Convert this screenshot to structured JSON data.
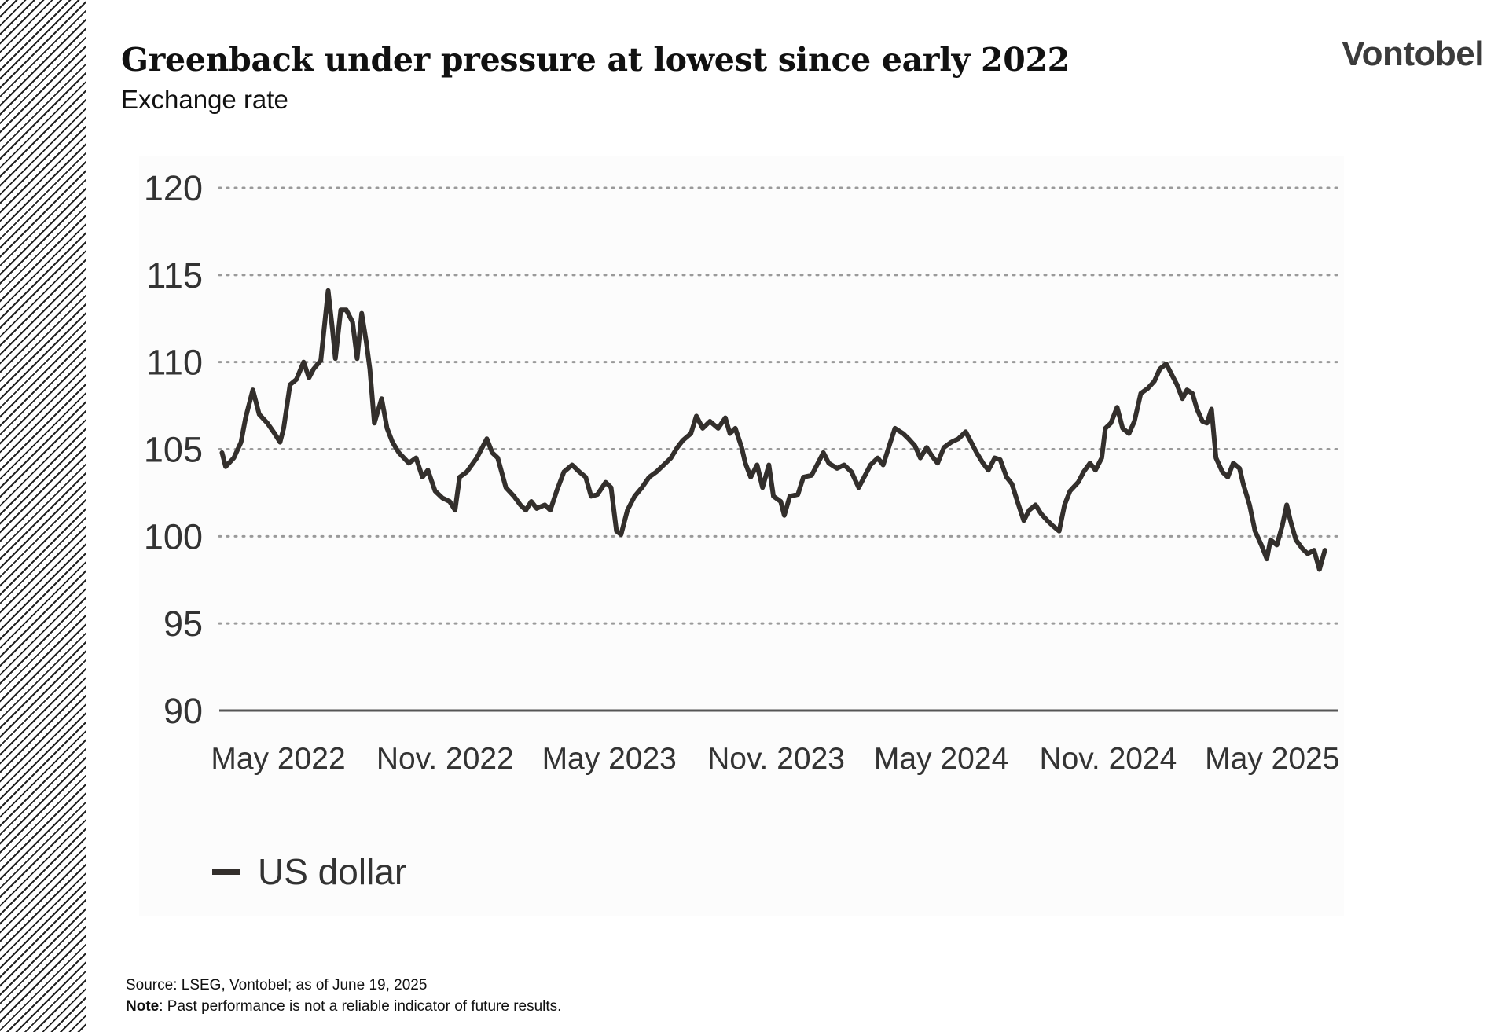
{
  "header": {
    "title": "Greenback under pressure at lowest since early 2022",
    "subtitle": "Exchange rate",
    "logo_text": "Vontobel"
  },
  "footer": {
    "source": "Source: LSEG, Vontobel; as of June 19, 2025",
    "note_label": "Note",
    "note_text": ": Past performance is not a reliable indicator of future results."
  },
  "colors": {
    "line": "#332f2c",
    "grid": "#9a9a9a",
    "axis": "#555555",
    "hatch": "#222222"
  },
  "chart_data": {
    "type": "line",
    "title": "",
    "xlabel": "",
    "ylabel": "",
    "ylim": [
      90,
      120
    ],
    "yticks": [
      90,
      95,
      100,
      105,
      110,
      115,
      120
    ],
    "ytick_labels": [
      "90",
      "95",
      "100",
      "105",
      "110",
      "115",
      "120"
    ],
    "xticks": [
      "2022-05-01",
      "2022-11-01",
      "2023-05-01",
      "2023-11-01",
      "2024-05-01",
      "2024-11-01",
      "2025-05-01"
    ],
    "xtick_labels": [
      "May 2022",
      "Nov. 2022",
      "May 2023",
      "Nov. 2023",
      "May 2024",
      "Nov. 2024",
      "May 2025"
    ],
    "grid": "horizontal dotted",
    "legend": "bottom-left",
    "series": [
      {
        "name": "US dollar",
        "x": [
          "2022-02-28",
          "2022-03-04",
          "2022-03-13",
          "2022-03-21",
          "2022-03-26",
          "2022-04-03",
          "2022-04-10",
          "2022-04-19",
          "2022-04-27",
          "2022-05-03",
          "2022-05-07",
          "2022-05-14",
          "2022-05-21",
          "2022-05-29",
          "2022-06-04",
          "2022-06-09",
          "2022-06-17",
          "2022-06-25",
          "2022-06-30",
          "2022-07-03",
          "2022-07-09",
          "2022-07-15",
          "2022-07-22",
          "2022-07-27",
          "2022-08-01",
          "2022-08-06",
          "2022-08-10",
          "2022-08-15",
          "2022-08-23",
          "2022-08-29",
          "2022-09-04",
          "2022-09-11",
          "2022-09-22",
          "2022-09-30",
          "2022-10-07",
          "2022-10-13",
          "2022-10-21",
          "2022-10-29",
          "2022-11-06",
          "2022-11-12",
          "2022-11-17",
          "2022-11-25",
          "2022-12-06",
          "2022-12-17",
          "2022-12-23",
          "2022-12-29",
          "2023-01-07",
          "2023-01-16",
          "2023-01-23",
          "2023-01-29",
          "2023-02-04",
          "2023-02-10",
          "2023-02-19",
          "2023-02-25",
          "2023-03-04",
          "2023-03-12",
          "2023-03-21",
          "2023-03-29",
          "2023-04-05",
          "2023-04-11",
          "2023-04-18",
          "2023-04-27",
          "2023-05-03",
          "2023-05-09",
          "2023-05-14",
          "2023-05-21",
          "2023-05-29",
          "2023-06-06",
          "2023-06-14",
          "2023-06-22",
          "2023-06-30",
          "2023-07-08",
          "2023-07-15",
          "2023-07-21",
          "2023-07-30",
          "2023-08-05",
          "2023-08-12",
          "2023-08-20",
          "2023-08-29",
          "2023-09-06",
          "2023-09-11",
          "2023-09-17",
          "2023-09-24",
          "2023-09-28",
          "2023-10-04",
          "2023-10-11",
          "2023-10-17",
          "2023-10-24",
          "2023-10-29",
          "2023-11-06",
          "2023-11-10",
          "2023-11-16",
          "2023-11-25",
          "2023-12-01",
          "2023-12-10",
          "2023-12-16",
          "2023-12-23",
          "2023-12-29",
          "2024-01-07",
          "2024-01-15",
          "2024-01-23",
          "2024-01-31",
          "2024-02-06",
          "2024-02-13",
          "2024-02-21",
          "2024-02-27",
          "2024-03-06",
          "2024-03-11",
          "2024-03-20",
          "2024-03-26",
          "2024-04-02",
          "2024-04-08",
          "2024-04-15",
          "2024-04-21",
          "2024-04-27",
          "2024-05-04",
          "2024-05-12",
          "2024-05-20",
          "2024-05-28",
          "2024-06-03",
          "2024-06-09",
          "2024-06-16",
          "2024-06-22",
          "2024-06-29",
          "2024-07-05",
          "2024-07-12",
          "2024-07-18",
          "2024-07-24",
          "2024-07-31",
          "2024-08-06",
          "2024-08-13",
          "2024-08-19",
          "2024-08-26",
          "2024-09-01",
          "2024-09-08",
          "2024-09-14",
          "2024-09-20",
          "2024-09-29",
          "2024-10-05",
          "2024-10-12",
          "2024-10-18",
          "2024-10-25",
          "2024-10-29",
          "2024-11-04",
          "2024-11-11",
          "2024-11-17",
          "2024-11-24",
          "2024-11-30",
          "2024-12-07",
          "2024-12-15",
          "2024-12-22",
          "2024-12-28",
          "2025-01-04",
          "2025-01-10",
          "2025-01-16",
          "2025-01-22",
          "2025-01-27",
          "2025-02-02",
          "2025-02-07",
          "2025-02-13",
          "2025-02-18",
          "2025-02-23",
          "2025-02-28",
          "2025-03-07",
          "2025-03-13",
          "2025-03-19",
          "2025-03-26",
          "2025-03-30",
          "2025-04-06",
          "2025-04-12",
          "2025-04-19",
          "2025-04-25",
          "2025-04-29",
          "2025-05-06",
          "2025-05-12",
          "2025-05-17",
          "2025-05-21",
          "2025-05-27",
          "2025-06-03",
          "2025-06-09",
          "2025-06-16",
          "2025-06-22",
          "2025-06-28"
        ],
        "y": [
          104.8,
          104.0,
          104.5,
          105.4,
          106.8,
          108.4,
          107.0,
          106.5,
          105.9,
          105.4,
          106.2,
          108.7,
          109.0,
          110.0,
          109.1,
          109.6,
          110.1,
          114.1,
          111.8,
          110.2,
          113.0,
          113.0,
          112.3,
          110.2,
          112.8,
          111.2,
          109.6,
          106.5,
          107.9,
          106.2,
          105.4,
          104.8,
          104.2,
          104.5,
          103.4,
          103.8,
          102.6,
          102.2,
          102.0,
          101.5,
          103.4,
          103.7,
          104.5,
          105.6,
          104.8,
          104.5,
          102.8,
          102.3,
          101.8,
          101.5,
          102.0,
          101.6,
          101.8,
          101.5,
          102.6,
          103.7,
          104.1,
          103.7,
          103.4,
          102.3,
          102.4,
          103.1,
          102.8,
          100.3,
          100.1,
          101.5,
          102.3,
          102.8,
          103.4,
          103.7,
          104.1,
          104.5,
          105.1,
          105.5,
          105.9,
          106.9,
          106.2,
          106.6,
          106.2,
          106.8,
          105.9,
          106.2,
          105.1,
          104.2,
          103.4,
          104.1,
          102.8,
          104.1,
          102.3,
          102.0,
          101.2,
          102.3,
          102.4,
          103.4,
          103.5,
          104.1,
          104.8,
          104.2,
          103.9,
          104.1,
          103.7,
          102.8,
          103.4,
          104.1,
          104.5,
          104.1,
          105.4,
          106.2,
          105.9,
          105.6,
          105.2,
          104.5,
          105.1,
          104.6,
          104.2,
          105.1,
          105.4,
          105.6,
          106.0,
          105.4,
          104.8,
          104.2,
          103.8,
          104.5,
          104.4,
          103.4,
          103.0,
          102.0,
          100.9,
          101.5,
          101.8,
          101.3,
          100.9,
          100.6,
          100.3,
          101.8,
          102.6,
          103.1,
          103.7,
          104.2,
          103.8,
          104.5,
          106.2,
          106.5,
          107.4,
          106.2,
          105.9,
          106.6,
          108.2,
          108.5,
          108.9,
          109.6,
          109.9,
          109.3,
          108.7,
          107.9,
          108.4,
          108.2,
          107.3,
          106.6,
          106.5,
          107.3,
          104.5,
          103.7,
          103.4,
          104.2,
          103.9,
          103.0,
          101.8,
          100.3,
          99.5,
          98.7,
          99.8,
          99.5,
          100.6,
          101.8,
          100.9,
          99.8,
          99.3,
          99.0,
          99.2,
          98.1,
          99.2
        ]
      }
    ]
  }
}
